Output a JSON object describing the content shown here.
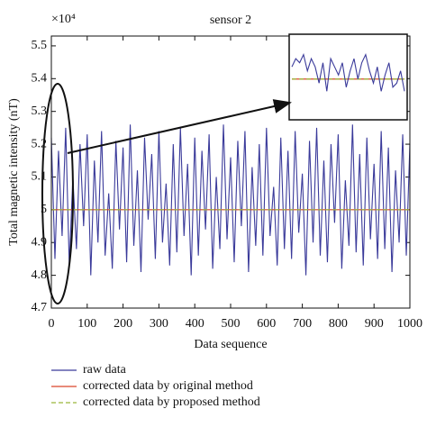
{
  "chart_data": {
    "type": "line",
    "title": "sensor 2",
    "xlabel": "Data sequence",
    "ylabel": "Total magnetic intensity (nT)",
    "y_multiplier": "×10⁴",
    "xlim": [
      0,
      1000
    ],
    "ylim": [
      4.7,
      5.53
    ],
    "xticks": [
      0,
      100,
      200,
      300,
      400,
      500,
      600,
      700,
      800,
      900,
      1000
    ],
    "yticks": [
      4.7,
      4.8,
      4.9,
      5,
      5.1,
      5.2,
      5.3,
      5.4,
      5.5
    ],
    "series": [
      {
        "name": "raw data",
        "color": "#3a3a9a",
        "dash": false,
        "x": [
          0,
          10,
          20,
          30,
          40,
          50,
          60,
          70,
          80,
          90,
          100,
          110,
          120,
          130,
          140,
          150,
          160,
          170,
          180,
          190,
          200,
          210,
          220,
          230,
          240,
          250,
          260,
          270,
          280,
          290,
          300,
          310,
          320,
          330,
          340,
          350,
          360,
          370,
          380,
          390,
          400,
          410,
          420,
          430,
          440,
          450,
          460,
          470,
          480,
          490,
          500,
          510,
          520,
          530,
          540,
          550,
          560,
          570,
          580,
          590,
          600,
          610,
          620,
          630,
          640,
          650,
          660,
          670,
          680,
          690,
          700,
          710,
          720,
          730,
          740,
          750,
          760,
          770,
          780,
          790,
          800,
          810,
          820,
          830,
          840,
          850,
          860,
          870,
          880,
          890,
          900,
          910,
          920,
          930,
          940,
          950,
          960,
          970,
          980,
          990,
          1000
        ],
        "values": [
          5.22,
          4.85,
          5.18,
          4.92,
          5.25,
          4.83,
          5.1,
          4.88,
          5.2,
          4.95,
          5.23,
          4.8,
          5.15,
          4.9,
          5.24,
          4.86,
          5.05,
          4.82,
          5.21,
          4.94,
          5.19,
          4.84,
          5.26,
          4.89,
          5.12,
          4.81,
          5.22,
          4.97,
          5.17,
          4.85,
          5.24,
          4.9,
          5.08,
          4.83,
          5.2,
          4.87,
          5.25,
          4.92,
          5.14,
          4.8,
          5.22,
          4.86,
          5.18,
          4.94,
          5.23,
          4.82,
          5.1,
          4.88,
          5.26,
          4.91,
          5.16,
          4.84,
          5.21,
          4.95,
          5.24,
          4.81,
          5.13,
          4.89,
          5.2,
          4.86,
          5.25,
          4.92,
          5.07,
          4.83,
          5.22,
          4.88,
          5.18,
          4.85,
          5.24,
          4.93,
          5.11,
          4.8,
          5.21,
          4.9,
          5.25,
          4.86,
          5.15,
          4.84,
          5.2,
          4.96,
          5.23,
          4.82,
          5.09,
          4.89,
          5.26,
          4.87,
          5.17,
          4.83,
          5.22,
          4.91,
          5.14,
          4.85,
          5.24,
          4.88,
          5.19,
          4.81,
          5.12,
          4.9,
          5.23,
          4.86,
          5.2
        ]
      },
      {
        "name": "corrected data by original method",
        "color": "#d9442a",
        "dash": false,
        "x": [
          0,
          1000
        ],
        "values": [
          5.0,
          5.0
        ]
      },
      {
        "name": "corrected data by proposed method",
        "color": "#9ab83a",
        "dash": true,
        "x": [
          0,
          1000
        ],
        "values": [
          5.0,
          5.0
        ]
      }
    ],
    "inset": {
      "ylim": [
        4.9,
        5.11
      ],
      "raw": [
        5.03,
        5.05,
        5.04,
        5.06,
        5.02,
        5.05,
        5.03,
        4.99,
        5.04,
        4.97,
        5.05,
        5.03,
        5.01,
        5.04,
        4.98,
        5.02,
        5.05,
        5.0,
        5.04,
        5.06,
        5.02,
        4.99,
        5.03,
        4.97,
        5.01,
        5.04,
        4.98,
        4.99,
        5.02,
        4.97
      ],
      "original": [
        5.0,
        5.0
      ],
      "proposed": [
        5.0,
        5.0
      ]
    }
  }
}
